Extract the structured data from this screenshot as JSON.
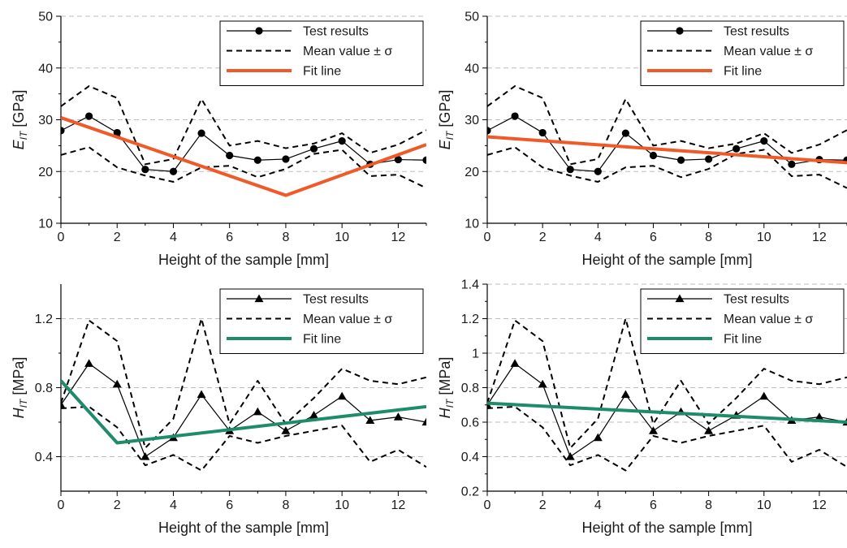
{
  "chart_data": [
    {
      "type": "line",
      "xlabel": "Height of the sample [mm]",
      "ylabel": {
        "symbol": "E",
        "subscript": "IT",
        "unit": " [GPa]"
      },
      "xlim": [
        0,
        13
      ],
      "ylim": [
        10,
        50
      ],
      "xticks": [
        0,
        2,
        4,
        6,
        8,
        10,
        12
      ],
      "yticks": [
        10,
        20,
        30,
        40,
        50
      ],
      "ytick_labels": [
        "10",
        "20",
        "30",
        "40",
        "50"
      ],
      "grid": "horizontal-dashed",
      "legend_position": "top-right",
      "marker": "circle",
      "x": [
        0,
        1,
        2,
        3,
        4,
        5,
        6,
        7,
        8,
        9,
        10,
        11,
        12,
        13
      ],
      "series": [
        {
          "name": "Test results",
          "style": "solid-markers",
          "color": "#000000",
          "values": [
            27.9,
            30.7,
            27.5,
            20.4,
            20.0,
            27.4,
            23.1,
            22.2,
            22.4,
            24.4,
            25.9,
            21.4,
            22.3,
            22.2
          ]
        },
        {
          "name": "Mean value ± σ",
          "style": "dashed",
          "color": "#000000",
          "values": [
            32.6,
            36.5,
            34.2,
            21.4,
            22.4,
            34.0,
            25.0,
            25.9,
            24.5,
            25.4,
            27.4,
            23.6,
            25.2,
            28.0
          ]
        },
        {
          "name": "",
          "style": "dashed",
          "color": "#000000",
          "values": [
            23.2,
            24.7,
            20.8,
            19.2,
            18.0,
            20.8,
            21.1,
            18.9,
            20.5,
            23.4,
            24.2,
            19.1,
            19.4,
            16.8
          ]
        },
        {
          "name": "Fit line",
          "style": "thick",
          "color": "#f05a28",
          "x": [
            0,
            8,
            13
          ],
          "values": [
            30.4,
            15.4,
            25.2
          ]
        }
      ]
    },
    {
      "type": "line",
      "xlabel": "Height of the sample [mm]",
      "ylabel": {
        "symbol": "E",
        "subscript": "IT",
        "unit": " [GPa]"
      },
      "xlim": [
        0,
        13
      ],
      "ylim": [
        10,
        50
      ],
      "xticks": [
        0,
        2,
        4,
        6,
        8,
        10,
        12
      ],
      "yticks": [
        10,
        20,
        30,
        40,
        50
      ],
      "ytick_labels": [
        "10",
        "20",
        "30",
        "40",
        "50"
      ],
      "grid": "horizontal-dashed",
      "legend_position": "top-right",
      "marker": "circle",
      "x": [
        0,
        1,
        2,
        3,
        4,
        5,
        6,
        7,
        8,
        9,
        10,
        11,
        12,
        13
      ],
      "series": [
        {
          "name": "Test results",
          "style": "solid-markers",
          "color": "#000000",
          "values": [
            27.9,
            30.7,
            27.5,
            20.4,
            20.0,
            27.4,
            23.1,
            22.2,
            22.4,
            24.4,
            25.9,
            21.4,
            22.3,
            22.2
          ]
        },
        {
          "name": "Mean value ± σ",
          "style": "dashed",
          "color": "#000000",
          "values": [
            32.6,
            36.5,
            34.2,
            21.4,
            22.4,
            34.0,
            25.0,
            25.9,
            24.5,
            25.4,
            27.4,
            23.6,
            25.2,
            28.0
          ]
        },
        {
          "name": "",
          "style": "dashed",
          "color": "#000000",
          "values": [
            23.2,
            24.7,
            20.8,
            19.2,
            18.0,
            20.8,
            21.1,
            18.9,
            20.5,
            23.4,
            24.2,
            19.1,
            19.4,
            16.8
          ]
        },
        {
          "name": "Fit line",
          "style": "thick",
          "color": "#f05a28",
          "x": [
            0,
            13
          ],
          "values": [
            26.7,
            21.7
          ]
        }
      ]
    },
    {
      "type": "line",
      "xlabel": "Height of the sample [mm]",
      "ylabel": {
        "symbol": "H",
        "subscript": "IT",
        "unit": " [MPa]"
      },
      "xlim": [
        0,
        13
      ],
      "ylim": [
        0.2,
        1.4
      ],
      "xticks": [
        0,
        2,
        4,
        6,
        8,
        10,
        12
      ],
      "yticks": [
        0.4,
        0.8,
        1.2
      ],
      "ytick_labels": [
        "0.4",
        "0.8",
        "1.2"
      ],
      "grid": "horizontal-dashed",
      "legend_position": "top-right",
      "marker": "triangle",
      "x": [
        0,
        1,
        2,
        3,
        4,
        5,
        6,
        7,
        8,
        9,
        10,
        11,
        12,
        13
      ],
      "series": [
        {
          "name": "Test results",
          "style": "solid-markers",
          "color": "#000000",
          "values": [
            0.7,
            0.94,
            0.82,
            0.4,
            0.51,
            0.76,
            0.55,
            0.66,
            0.55,
            0.64,
            0.75,
            0.61,
            0.63,
            0.6
          ]
        },
        {
          "name": "Mean value ± σ",
          "style": "dashed",
          "color": "#000000",
          "values": [
            0.71,
            1.19,
            1.07,
            0.45,
            0.62,
            1.2,
            0.59,
            0.84,
            0.59,
            0.74,
            0.91,
            0.84,
            0.82,
            0.86
          ]
        },
        {
          "name": "",
          "style": "dashed",
          "color": "#000000",
          "values": [
            0.68,
            0.69,
            0.57,
            0.35,
            0.41,
            0.32,
            0.52,
            0.48,
            0.52,
            0.55,
            0.58,
            0.37,
            0.44,
            0.34
          ]
        },
        {
          "name": "Fit line",
          "style": "thick",
          "color": "#1e8c6a",
          "x": [
            0,
            2,
            13
          ],
          "values": [
            0.84,
            0.48,
            0.69
          ]
        }
      ]
    },
    {
      "type": "line",
      "xlabel": "Height of the sample [mm]",
      "ylabel": {
        "symbol": "H",
        "subscript": "IT",
        "unit": " [MPa]"
      },
      "xlim": [
        0,
        13
      ],
      "ylim": [
        0.2,
        1.4
      ],
      "xticks": [
        0,
        2,
        4,
        6,
        8,
        10,
        12
      ],
      "yticks": [
        0.2,
        0.4,
        0.6,
        0.8,
        1.0,
        1.2,
        1.4
      ],
      "ytick_labels": [
        "0.2",
        "0.4",
        "0.6",
        "0.8",
        "1",
        "1.2",
        "1.4"
      ],
      "grid": "horizontal-dashed",
      "legend_position": "top-right",
      "marker": "triangle",
      "x": [
        0,
        1,
        2,
        3,
        4,
        5,
        6,
        7,
        8,
        9,
        10,
        11,
        12,
        13
      ],
      "series": [
        {
          "name": "Test results",
          "style": "solid-markers",
          "color": "#000000",
          "values": [
            0.7,
            0.94,
            0.82,
            0.4,
            0.51,
            0.76,
            0.55,
            0.66,
            0.55,
            0.64,
            0.75,
            0.61,
            0.63,
            0.6
          ]
        },
        {
          "name": "Mean value ± σ",
          "style": "dashed",
          "color": "#000000",
          "values": [
            0.71,
            1.19,
            1.07,
            0.45,
            0.62,
            1.2,
            0.59,
            0.84,
            0.59,
            0.74,
            0.91,
            0.84,
            0.82,
            0.86
          ]
        },
        {
          "name": "",
          "style": "dashed",
          "color": "#000000",
          "values": [
            0.68,
            0.69,
            0.57,
            0.35,
            0.41,
            0.32,
            0.52,
            0.48,
            0.52,
            0.55,
            0.58,
            0.37,
            0.44,
            0.34
          ]
        },
        {
          "name": "Fit line",
          "style": "thick",
          "color": "#1e8c6a",
          "x": [
            0,
            13
          ],
          "values": [
            0.71,
            0.6
          ]
        }
      ]
    }
  ]
}
